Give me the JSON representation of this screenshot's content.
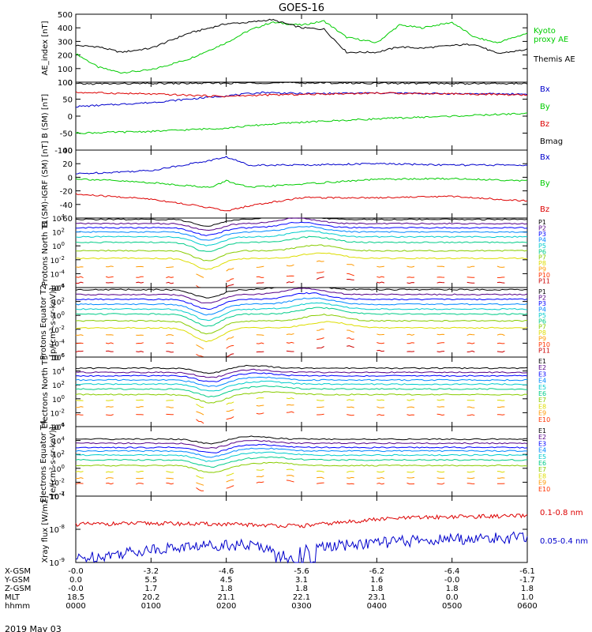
{
  "title": "GOES-16",
  "date_label": "2019 May 03",
  "colors": {
    "black": "#000000",
    "red": "#dd0000",
    "green": "#00cc00",
    "blue": "#0000cc",
    "proton_levels": [
      "#000000",
      "#550088",
      "#0000ff",
      "#0088ff",
      "#00cccc",
      "#00cc88",
      "#88cc00",
      "#dddd00",
      "#ff9900",
      "#ff3300",
      "#cc0000"
    ],
    "electron_levels": [
      "#000000",
      "#550088",
      "#0000ff",
      "#0088ff",
      "#00cccc",
      "#00cc88",
      "#88cc00",
      "#dddd00",
      "#ff9900",
      "#ff3300",
      "#cc0000"
    ]
  },
  "x_axis": {
    "tick_hours": [
      0,
      1,
      2,
      3,
      4,
      5,
      6
    ],
    "rows": [
      {
        "label": "X-GSM",
        "values": [
          "-0.0",
          "-3.2",
          "-4.6",
          "-5.6",
          "-6.2",
          "-6.4",
          "-6.1"
        ]
      },
      {
        "label": "Y-GSM",
        "values": [
          "0.0",
          "5.5",
          "4.5",
          "3.1",
          "1.6",
          "-0.0",
          "-1.7"
        ]
      },
      {
        "label": "Z-GSM",
        "values": [
          "-0.0",
          "1.7",
          "1.8",
          "1.8",
          "1.8",
          "1.8",
          "1.8"
        ]
      },
      {
        "label": "MLT",
        "values": [
          "18.5",
          "20.2",
          "21.1",
          "22.1",
          "23.1",
          "0.0",
          "1.0"
        ]
      },
      {
        "label": "hhmm",
        "values": [
          "0000",
          "0100",
          "0200",
          "0300",
          "0400",
          "0500",
          "0600"
        ]
      }
    ]
  },
  "chart_data": [
    {
      "type": "line",
      "ylabel": "AE_index [nT]",
      "ylim": [
        0,
        500
      ],
      "yticks": [
        "0",
        "100",
        "200",
        "300",
        "400",
        "500"
      ],
      "series": [
        {
          "name": "Kyoto proxy AE",
          "color": "#00cc00",
          "label_lines": [
            "Kyoto",
            "proxy AE"
          ],
          "x": [
            0,
            0.3,
            0.6,
            1,
            1.5,
            2,
            2.3,
            2.6,
            3,
            3.3,
            3.6,
            4,
            4.3,
            4.6,
            5,
            5.3,
            5.6,
            6
          ],
          "y": [
            210,
            110,
            70,
            90,
            170,
            290,
            380,
            440,
            420,
            450,
            330,
            290,
            420,
            400,
            440,
            330,
            290,
            360
          ]
        },
        {
          "name": "Themis AE",
          "color": "#000000",
          "label_lines": [
            "Themis AE"
          ],
          "x": [
            0,
            0.3,
            0.6,
            1,
            1.5,
            2,
            2.3,
            2.6,
            3,
            3.3,
            3.6,
            4,
            4.3,
            4.6,
            5,
            5.3,
            5.6,
            6
          ],
          "y": [
            270,
            260,
            220,
            250,
            360,
            430,
            440,
            460,
            400,
            390,
            220,
            220,
            260,
            250,
            270,
            280,
            210,
            240
          ]
        }
      ]
    },
    {
      "type": "line",
      "ylabel": "B (SM) [nT]",
      "ylim": [
        -100,
        100
      ],
      "yticks": [
        "-100",
        "-50",
        "0",
        "50",
        "100"
      ],
      "series": [
        {
          "name": "Bx",
          "color": "#0000cc",
          "x": [
            0,
            1,
            2,
            2.5,
            3,
            4,
            5,
            6
          ],
          "y": [
            28,
            40,
            60,
            70,
            66,
            68,
            66,
            65
          ]
        },
        {
          "name": "By",
          "color": "#00cc00",
          "x": [
            0,
            1,
            2,
            2.5,
            3,
            4,
            5,
            6
          ],
          "y": [
            -50,
            -45,
            -35,
            -25,
            -18,
            -8,
            0,
            8
          ]
        },
        {
          "name": "Bz",
          "color": "#dd0000",
          "x": [
            0,
            1,
            2,
            2.5,
            3,
            4,
            5,
            6
          ],
          "y": [
            70,
            65,
            58,
            62,
            64,
            68,
            66,
            62
          ]
        },
        {
          "name": "Bmag",
          "color": "#000000",
          "x": [
            0,
            1,
            2,
            2.5,
            3,
            4,
            5,
            6
          ],
          "y": [
            95,
            96,
            97,
            98,
            98,
            97,
            96,
            96
          ]
        }
      ]
    },
    {
      "type": "line",
      "ylabel": "B (SM)-IGRF (SM) [nT]",
      "ylim": [
        -60,
        40
      ],
      "yticks": [
        "-60",
        "-40",
        "-20",
        "0",
        "20",
        "40"
      ],
      "series": [
        {
          "name": "Bx",
          "color": "#0000cc",
          "x": [
            0,
            1,
            1.8,
            2,
            2.3,
            3,
            4,
            5,
            6
          ],
          "y": [
            5,
            10,
            25,
            30,
            18,
            18,
            20,
            18,
            18
          ]
        },
        {
          "name": "By",
          "color": "#00cc00",
          "x": [
            0,
            1,
            1.8,
            2,
            2.3,
            3,
            4,
            5,
            6
          ],
          "y": [
            -2,
            -8,
            -15,
            -5,
            -15,
            -10,
            -3,
            -2,
            -5
          ]
        },
        {
          "name": "Bz",
          "color": "#dd0000",
          "x": [
            0,
            1,
            1.8,
            2,
            2.3,
            3,
            4,
            5,
            6
          ],
          "y": [
            -25,
            -32,
            -45,
            -50,
            -42,
            -30,
            -30,
            -28,
            -35
          ]
        }
      ]
    },
    {
      "type": "line",
      "log": true,
      "ylabel": "Protons North T1",
      "ylim_exp": [
        -6,
        4
      ],
      "level_names": [
        "P1",
        "P2",
        "P3",
        "P4",
        "P5",
        "P6",
        "P7",
        "P8",
        "P9",
        "P10",
        "P11"
      ],
      "base_levels": [
        3.8,
        3.2,
        2.6,
        2.0,
        1.3,
        0.5,
        -0.7,
        -1.8,
        -3.0,
        -4.5,
        -5.3
      ],
      "dip_center": 1.75,
      "dip_depth": 1.5,
      "bump_center": 2.9,
      "bump_height": 0.8
    },
    {
      "type": "line",
      "log": true,
      "ylabel": "Protons Equator T2",
      "units": "[p/(cm²-s-sr-keV)]",
      "ylim_exp": [
        -6,
        4
      ],
      "level_names": [
        "P1",
        "P2",
        "P3",
        "P4",
        "P5",
        "P6",
        "P7",
        "P8",
        "P9",
        "P10",
        "P11"
      ],
      "base_levels": [
        3.7,
        3.0,
        2.3,
        1.6,
        0.9,
        0.2,
        -0.8,
        -1.8,
        -2.8,
        -4.0,
        -5.2
      ],
      "dip_center": 1.75,
      "dip_depth": 1.9,
      "bump_center": 3.0,
      "bump_height": 0.9
    },
    {
      "type": "line",
      "log": true,
      "ylabel": "Electrons North T3",
      "ylim_exp": [
        -4,
        6
      ],
      "level_names": [
        "E1",
        "E2",
        "E3",
        "E4",
        "E5",
        "E6",
        "E7",
        "E8",
        "E9",
        "E10"
      ],
      "base_levels": [
        4.4,
        3.8,
        3.3,
        2.7,
        2.1,
        1.4,
        0.6,
        -0.2,
        -1.2,
        -2.3
      ],
      "dip_center": 1.8,
      "dip_depth": 1.2,
      "bump_center": 2.3,
      "bump_height": 0.4
    },
    {
      "type": "line",
      "log": true,
      "ylabel": "Electrons Equator T4",
      "units": "[e/(cm²-s-sr-keV)]",
      "ylim_exp": [
        -4,
        6
      ],
      "level_names": [
        "E1",
        "E2",
        "E3",
        "E4",
        "E5",
        "E6",
        "E7",
        "E8",
        "E9",
        "E10"
      ],
      "base_levels": [
        4.2,
        3.6,
        3.0,
        2.5,
        1.9,
        1.2,
        0.4,
        -0.5,
        -1.4,
        -2.2
      ],
      "dip_center": 1.8,
      "dip_depth": 1.1,
      "bump_center": 2.3,
      "bump_height": 0.4
    },
    {
      "type": "line",
      "log": true,
      "ylabel": "Xray flux [W/m2]",
      "ylim_exp": [
        -9,
        -7
      ],
      "series": [
        {
          "name": "0.1-0.8 nm",
          "color": "#dd0000",
          "x": [
            0,
            1,
            2,
            3,
            4,
            4.5,
            5,
            6
          ],
          "y_exp": [
            -7.85,
            -7.82,
            -7.85,
            -7.9,
            -7.7,
            -7.65,
            -7.62,
            -7.6
          ]
        },
        {
          "name": "0.05-0.4 nm",
          "color": "#0000cc",
          "x": [
            0,
            1,
            2,
            3,
            4,
            4.5,
            5,
            6
          ],
          "y_exp": [
            -8.9,
            -8.6,
            -8.45,
            -8.6,
            -8.4,
            -8.35,
            -8.3,
            -8.25
          ]
        }
      ]
    }
  ]
}
